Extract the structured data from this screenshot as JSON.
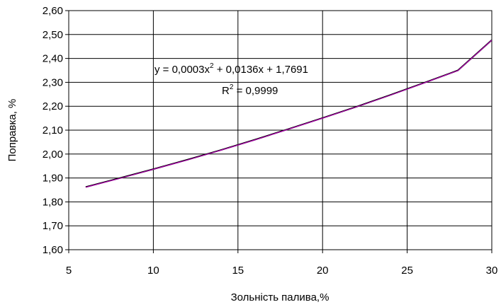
{
  "chart_data": {
    "type": "line",
    "xlabel": "Зольність палива,%",
    "ylabel": "Поправка, %",
    "xlim": [
      5,
      30
    ],
    "ylim": [
      1.6,
      2.6
    ],
    "xticks": [
      "5",
      "10",
      "15",
      "20",
      "25",
      "30"
    ],
    "yticks": [
      "1,60",
      "1,70",
      "1,80",
      "1,90",
      "2,00",
      "2,10",
      "2,20",
      "2,30",
      "2,40",
      "2,50",
      "2,60"
    ],
    "grid": true,
    "legend": "none",
    "series": [
      {
        "color": "#000000",
        "x": [
          6,
          8,
          10,
          12,
          14,
          16,
          18,
          20,
          22,
          24,
          26,
          28,
          30
        ],
        "y": [
          1.862,
          1.899,
          1.937,
          1.976,
          2.017,
          2.06,
          2.105,
          2.151,
          2.198,
          2.247,
          2.298,
          2.35,
          2.477
        ]
      },
      {
        "color": "#cc00cc",
        "x": [
          6,
          8,
          10,
          12,
          14,
          16,
          18,
          20,
          22,
          24,
          26,
          28,
          30
        ],
        "y": [
          1.861,
          1.898,
          1.936,
          1.975,
          2.016,
          2.059,
          2.104,
          2.15,
          2.197,
          2.246,
          2.297,
          2.349,
          2.476
        ]
      }
    ],
    "annotations": {
      "equation_y": "y = 0,0003x",
      "equation_sup": "2",
      "equation_rest": " + 0,0136x + 1,7691",
      "r2_label": "R",
      "r2_sup": "2",
      "r2_rest": " = 0,9999"
    }
  }
}
